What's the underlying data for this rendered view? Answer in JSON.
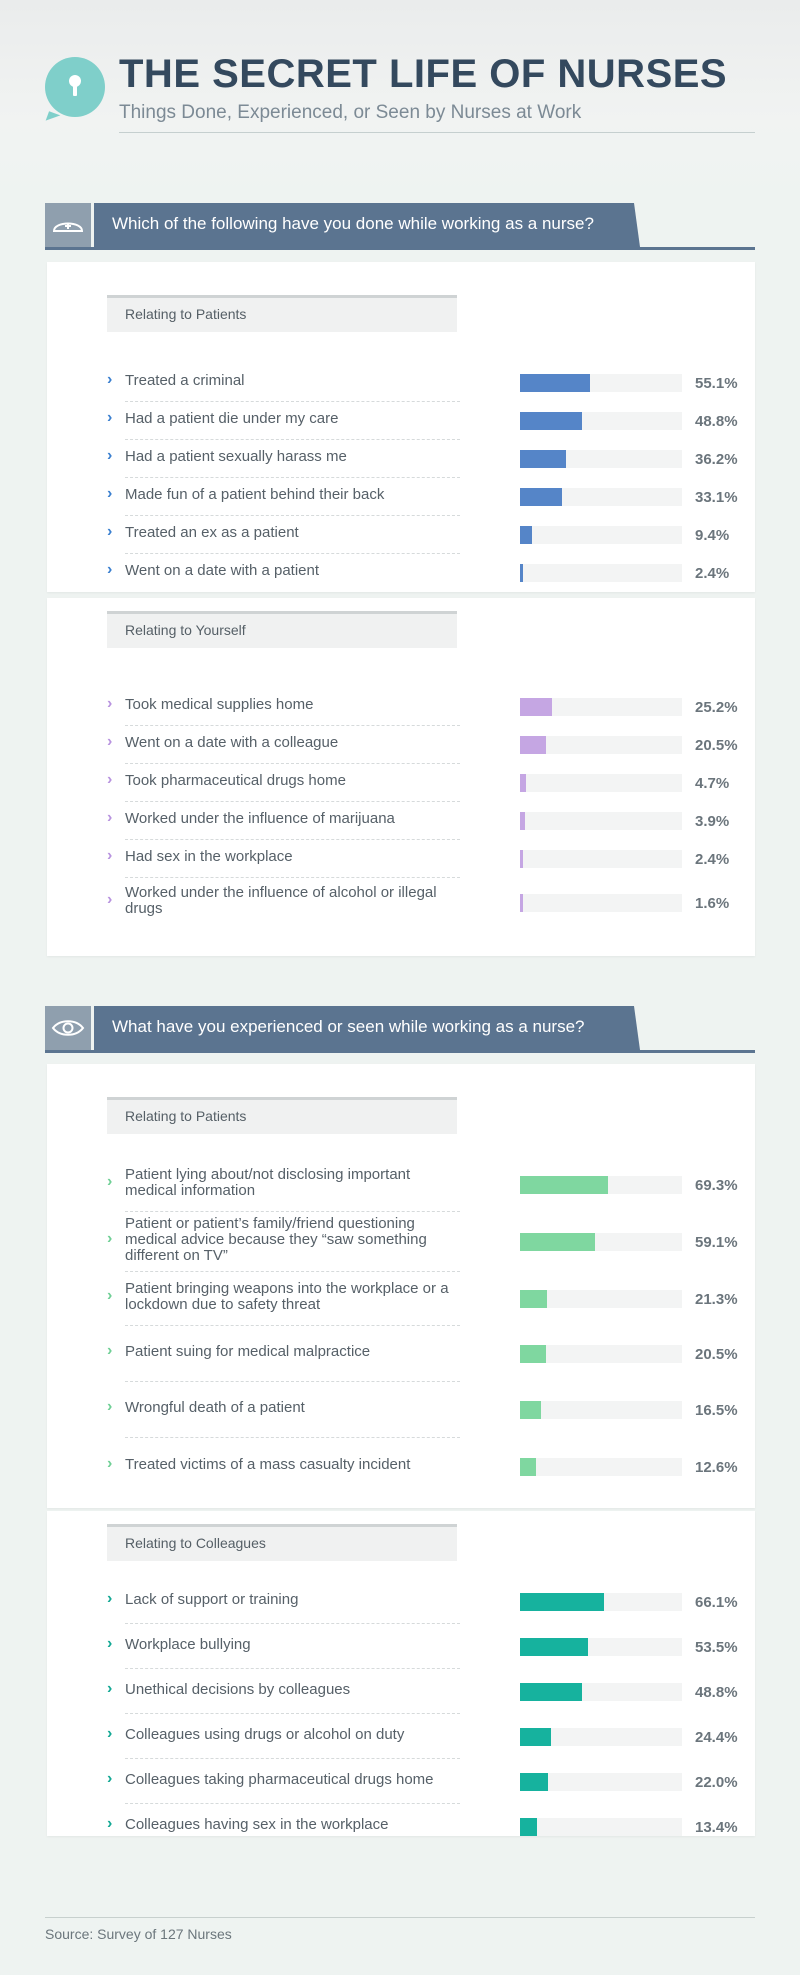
{
  "header": {
    "title": "THE SECRET LIFE OF NURSES",
    "subtitle": "Things Done, Experienced, or Seen by Nurses at Work"
  },
  "sections": [
    {
      "question": "Which of the following have you done while working as a nurse?",
      "icon": "nurse-cap-icon"
    },
    {
      "question": "What have you experienced or seen while working as a nurse?",
      "icon": "eye-icon"
    }
  ],
  "source": "Source: Survey of 127 Nurses",
  "colors": {
    "patients_done": "#5585c8",
    "yourself_done": "#c5a6e3",
    "patients_seen": "#7fd7a0",
    "colleagues_seen": "#16b29e",
    "banner": "#5b7490"
  },
  "chart_data": [
    {
      "type": "bar",
      "orientation": "horizontal",
      "title": "Relating to Patients",
      "unit": "%",
      "xlim": [
        0,
        127
      ],
      "categories": [
        "Treated a criminal",
        "Had a patient die under my care",
        "Had a patient sexually harass me",
        "Made fun of a patient behind their back",
        "Treated an ex as a patient",
        "Went on a date with a patient"
      ],
      "values": [
        55.1,
        48.8,
        36.2,
        33.1,
        9.4,
        2.4
      ],
      "labels": [
        "55.1%",
        "48.8%",
        "36.2%",
        "33.1%",
        "9.4%",
        "2.4%"
      ]
    },
    {
      "type": "bar",
      "orientation": "horizontal",
      "title": "Relating to Yourself",
      "unit": "%",
      "xlim": [
        0,
        127
      ],
      "categories": [
        "Took medical supplies home",
        "Went on a date with a colleague",
        "Took pharmaceutical drugs home",
        "Worked under the influence of marijuana",
        "Had sex in the workplace",
        "Worked under the influence of alcohol or illegal drugs"
      ],
      "values": [
        25.2,
        20.5,
        4.7,
        3.9,
        2.4,
        1.6
      ],
      "labels": [
        "25.2%",
        "20.5%",
        "4.7%",
        "3.9%",
        "2.4%",
        "1.6%"
      ]
    },
    {
      "type": "bar",
      "orientation": "horizontal",
      "title": "Relating to Patients",
      "unit": "%",
      "xlim": [
        0,
        127
      ],
      "categories": [
        "Patient lying about/not disclosing important medical information",
        "Patient or patient’s family/friend questioning medical advice because they “saw something different on TV”",
        "Patient bringing weapons into the workplace or a lockdown due to safety threat",
        "Patient suing for medical malpractice",
        "Wrongful death of a patient",
        "Treated victims of a mass casualty incident"
      ],
      "values": [
        69.3,
        59.1,
        21.3,
        20.5,
        16.5,
        12.6
      ],
      "labels": [
        "69.3%",
        "59.1%",
        "21.3%",
        "20.5%",
        "16.5%",
        "12.6%"
      ]
    },
    {
      "type": "bar",
      "orientation": "horizontal",
      "title": "Relating to Colleagues",
      "unit": "%",
      "xlim": [
        0,
        127
      ],
      "categories": [
        "Lack of support or training",
        "Workplace bullying",
        "Unethical decisions by colleagues",
        "Colleagues using drugs or alcohol on duty",
        "Colleagues taking pharmaceutical drugs home",
        "Colleagues having sex in the workplace"
      ],
      "values": [
        66.1,
        53.5,
        48.8,
        24.4,
        22.0,
        13.4
      ],
      "labels": [
        "66.1%",
        "53.5%",
        "48.8%",
        "24.4%",
        "22.0%",
        "13.4%"
      ]
    }
  ]
}
